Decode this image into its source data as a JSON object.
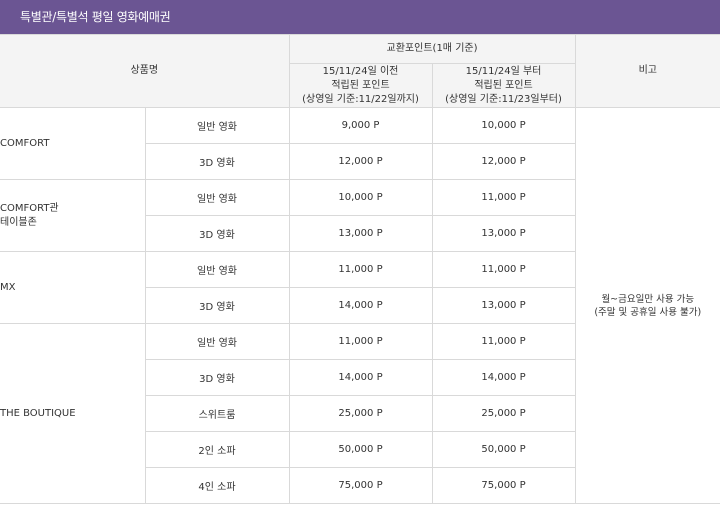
{
  "title": "특별관/특별석 평일 영화예매권",
  "headers": {
    "product": "상품명",
    "exchange": "교환포인트(1매 기준)",
    "before": [
      "15/11/24일 이전",
      "적립된 포인트",
      "(상영일 기준:11/22일까지)"
    ],
    "after": [
      "15/11/24일 부터",
      "적립된 포인트",
      "(상영일 기준:11/23일부터)"
    ],
    "remarks": "비고"
  },
  "groups": [
    {
      "name": [
        "COMFORT"
      ],
      "rows": [
        {
          "type": "일반 영화",
          "before": "9,000 P",
          "after": "10,000 P"
        },
        {
          "type": "3D 영화",
          "before": "12,000 P",
          "after": "12,000 P"
        }
      ]
    },
    {
      "name": [
        "COMFORT관",
        "테이블존"
      ],
      "rows": [
        {
          "type": "일반 영화",
          "before": "10,000 P",
          "after": "11,000 P"
        },
        {
          "type": "3D 영화",
          "before": "13,000 P",
          "after": "13,000 P"
        }
      ]
    },
    {
      "name": [
        "MX"
      ],
      "rows": [
        {
          "type": "일반 영화",
          "before": "11,000 P",
          "after": "11,000 P"
        },
        {
          "type": "3D 영화",
          "before": "14,000 P",
          "after": "13,000 P"
        }
      ]
    },
    {
      "name": [
        "THE BOUTIQUE"
      ],
      "rows": [
        {
          "type": "일반 영화",
          "before": "11,000 P",
          "after": "11,000 P"
        },
        {
          "type": "3D 영화",
          "before": "14,000 P",
          "after": "14,000 P"
        },
        {
          "type": "스위트룸",
          "before": "25,000 P",
          "after": "25,000 P"
        },
        {
          "type": "2인 소파",
          "before": "50,000 P",
          "after": "50,000 P"
        },
        {
          "type": "4인 소파",
          "before": "75,000 P",
          "after": "75,000 P"
        }
      ]
    }
  ],
  "note": [
    "월~금요일만 사용 가능",
    "(주말 및 공휴일 사용 불가)"
  ]
}
